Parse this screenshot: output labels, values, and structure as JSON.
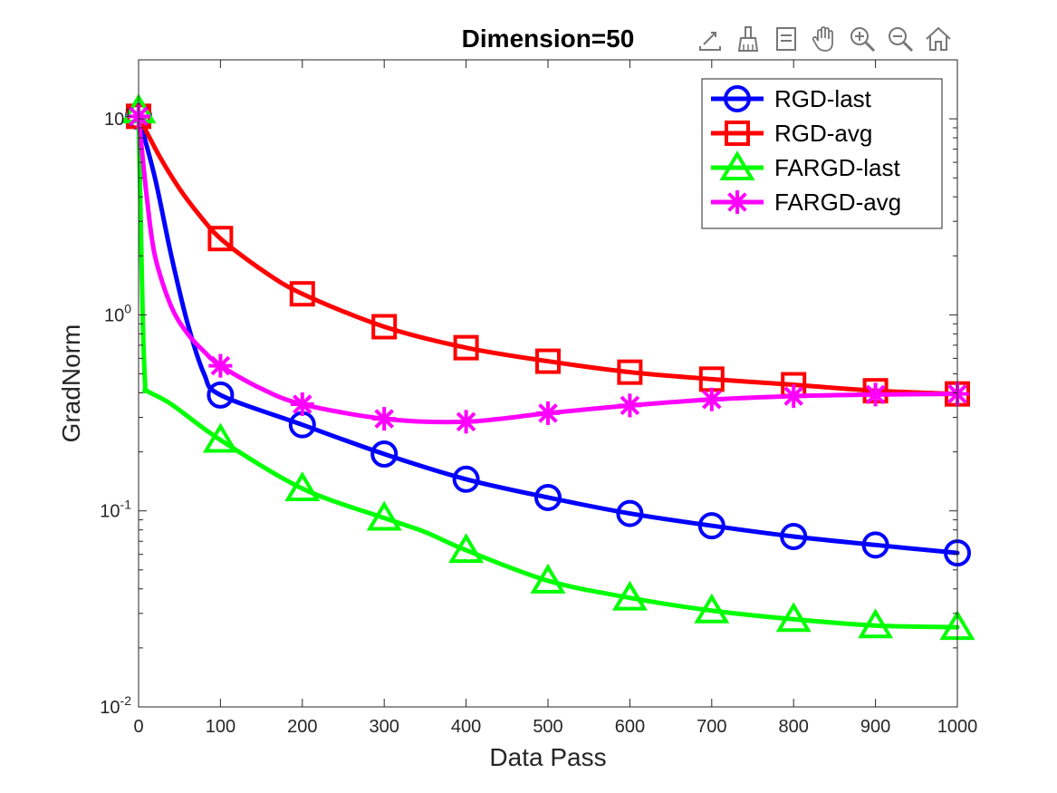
{
  "toolbar": {
    "icons": [
      "export-icon",
      "brush-icon",
      "datatip-icon",
      "pan-icon",
      "zoom-in-icon",
      "zoom-out-icon",
      "home-icon"
    ]
  },
  "colors": {
    "rgd_last": "#0000ff",
    "rgd_avg": "#ff0000",
    "fargd_last": "#00ff00",
    "fargd_avg": "#ff00ff"
  },
  "chart_data": {
    "type": "line",
    "title": "Dimension=50",
    "xlabel": "Data Pass",
    "ylabel": "GradNorm",
    "xlim": [
      0,
      1000
    ],
    "ylim": [
      0.01,
      20
    ],
    "yscale": "log",
    "grid": false,
    "legend_position": "top-right",
    "xticks": [
      "0",
      "100",
      "200",
      "300",
      "400",
      "500",
      "600",
      "700",
      "800",
      "900",
      "1000"
    ],
    "yticks": [
      {
        "value": 0.01,
        "base": "10",
        "exp": "-2"
      },
      {
        "value": 0.1,
        "base": "10",
        "exp": "-1"
      },
      {
        "value": 1,
        "base": "10",
        "exp": "0"
      },
      {
        "value": 10,
        "base": "10",
        "exp": "1"
      }
    ],
    "series": [
      {
        "name": "RGD-last",
        "color": "#0000ff",
        "marker": "circle",
        "x": [
          0,
          20,
          40,
          60,
          80,
          100,
          200,
          300,
          400,
          500,
          600,
          700,
          800,
          900,
          1000
        ],
        "y": [
          10.3,
          5.0,
          2.0,
          0.9,
          0.5,
          0.39,
          0.275,
          0.195,
          0.145,
          0.117,
          0.097,
          0.084,
          0.074,
          0.067,
          0.061
        ],
        "marker_x": [
          0,
          100,
          200,
          300,
          400,
          500,
          600,
          700,
          800,
          900,
          1000
        ],
        "marker_y": [
          10.3,
          0.39,
          0.275,
          0.195,
          0.145,
          0.117,
          0.097,
          0.084,
          0.074,
          0.067,
          0.061
        ]
      },
      {
        "name": "RGD-avg",
        "color": "#ff0000",
        "marker": "square",
        "x": [
          0,
          25,
          50,
          75,
          100,
          150,
          200,
          300,
          400,
          500,
          600,
          700,
          800,
          900,
          1000
        ],
        "y": [
          10.3,
          6.5,
          4.4,
          3.2,
          2.45,
          1.7,
          1.28,
          0.87,
          0.68,
          0.58,
          0.51,
          0.47,
          0.44,
          0.41,
          0.395
        ],
        "marker_x": [
          0,
          100,
          200,
          300,
          400,
          500,
          600,
          700,
          800,
          900,
          1000
        ],
        "marker_y": [
          10.3,
          2.45,
          1.28,
          0.87,
          0.68,
          0.58,
          0.51,
          0.47,
          0.44,
          0.41,
          0.395
        ]
      },
      {
        "name": "FARGD-last",
        "color": "#00ff00",
        "marker": "triangle",
        "x": [
          0,
          5,
          8,
          10,
          40,
          100,
          200,
          300,
          350,
          400,
          500,
          600,
          700,
          800,
          900,
          1000
        ],
        "y": [
          11.0,
          1.0,
          0.44,
          0.41,
          0.35,
          0.23,
          0.13,
          0.092,
          0.078,
          0.063,
          0.044,
          0.036,
          0.031,
          0.028,
          0.026,
          0.0255
        ],
        "marker_x": [
          0,
          100,
          200,
          300,
          400,
          500,
          600,
          700,
          800,
          900,
          1000
        ],
        "marker_y": [
          11.0,
          0.23,
          0.13,
          0.092,
          0.063,
          0.044,
          0.036,
          0.031,
          0.028,
          0.026,
          0.0255
        ]
      },
      {
        "name": "FARGD-avg",
        "color": "#ff00ff",
        "marker": "asterisk",
        "x": [
          0,
          10,
          20,
          40,
          60,
          80,
          100,
          150,
          200,
          300,
          400,
          500,
          600,
          700,
          800,
          900,
          1000
        ],
        "y": [
          10.3,
          4.0,
          2.0,
          1.1,
          0.8,
          0.65,
          0.55,
          0.42,
          0.35,
          0.295,
          0.285,
          0.315,
          0.345,
          0.37,
          0.385,
          0.392,
          0.395
        ],
        "marker_x": [
          0,
          100,
          200,
          300,
          400,
          500,
          600,
          700,
          800,
          900,
          1000
        ],
        "marker_y": [
          10.3,
          0.55,
          0.35,
          0.295,
          0.285,
          0.315,
          0.345,
          0.37,
          0.385,
          0.392,
          0.395
        ]
      }
    ]
  }
}
